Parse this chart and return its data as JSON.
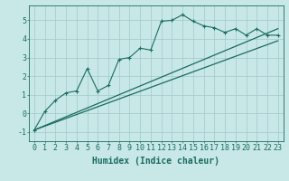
{
  "xlabel": "Humidex (Indice chaleur)",
  "bg_color": "#c8e8e8",
  "grid_color": "#a0c8c8",
  "line_color": "#1a6b5e",
  "xlim": [
    -0.5,
    23.5
  ],
  "ylim": [
    -1.5,
    5.8
  ],
  "xticks": [
    0,
    1,
    2,
    3,
    4,
    5,
    6,
    7,
    8,
    9,
    10,
    11,
    12,
    13,
    14,
    15,
    16,
    17,
    18,
    19,
    20,
    21,
    22,
    23
  ],
  "yticks": [
    -1,
    0,
    1,
    2,
    3,
    4,
    5
  ],
  "line1_x": [
    0,
    1,
    2,
    3,
    4,
    5,
    6,
    7,
    8,
    9,
    10,
    11,
    12,
    13,
    14,
    15,
    16,
    17,
    18,
    19,
    20,
    21,
    22,
    23
  ],
  "line1_y": [
    -0.9,
    0.1,
    0.7,
    1.1,
    1.2,
    2.4,
    1.2,
    1.5,
    2.9,
    3.0,
    3.5,
    3.4,
    4.95,
    5.0,
    5.3,
    4.95,
    4.7,
    4.6,
    4.35,
    4.55,
    4.2,
    4.55,
    4.2,
    4.2
  ],
  "line2_y_start": -0.9,
  "line2_y_end": 4.55,
  "line3_y_start": -0.9,
  "line3_y_end": 3.9,
  "font_size": 7,
  "marker": "+"
}
